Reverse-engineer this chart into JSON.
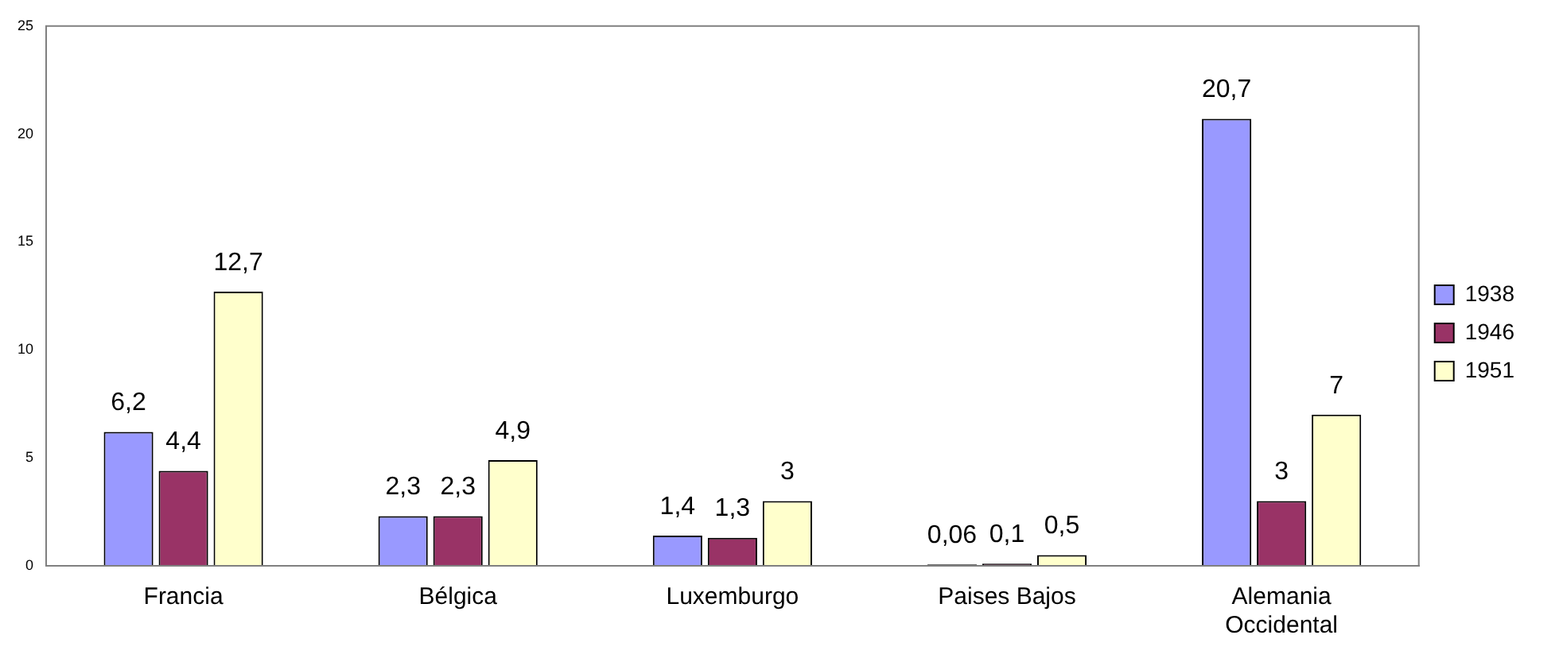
{
  "chart_data": {
    "type": "bar",
    "categories": [
      "Francia",
      "Bélgica",
      "Luxemburgo",
      "Paises Bajos",
      "Alemania\nOccidental"
    ],
    "series": [
      {
        "name": "1938",
        "color": "#9999ff",
        "values": [
          6.2,
          2.3,
          1.4,
          0.06,
          20.7
        ],
        "value_labels": [
          "6,2",
          "2,3",
          "1,4",
          "0,06",
          "20,7"
        ]
      },
      {
        "name": "1946",
        "color": "#993366",
        "values": [
          4.4,
          2.3,
          1.3,
          0.1,
          3
        ],
        "value_labels": [
          "4,4",
          "2,3",
          "1,3",
          "0,1",
          "3"
        ]
      },
      {
        "name": "1951",
        "color": "#ffffcc",
        "values": [
          12.7,
          4.9,
          3,
          0.5,
          7
        ],
        "value_labels": [
          "12,7",
          "4,9",
          "3",
          "0,5",
          "7"
        ]
      }
    ],
    "ylim": [
      0,
      25
    ],
    "yticks": [
      0,
      5,
      10,
      15,
      20,
      25
    ],
    "grid": false,
    "legend": "right"
  }
}
